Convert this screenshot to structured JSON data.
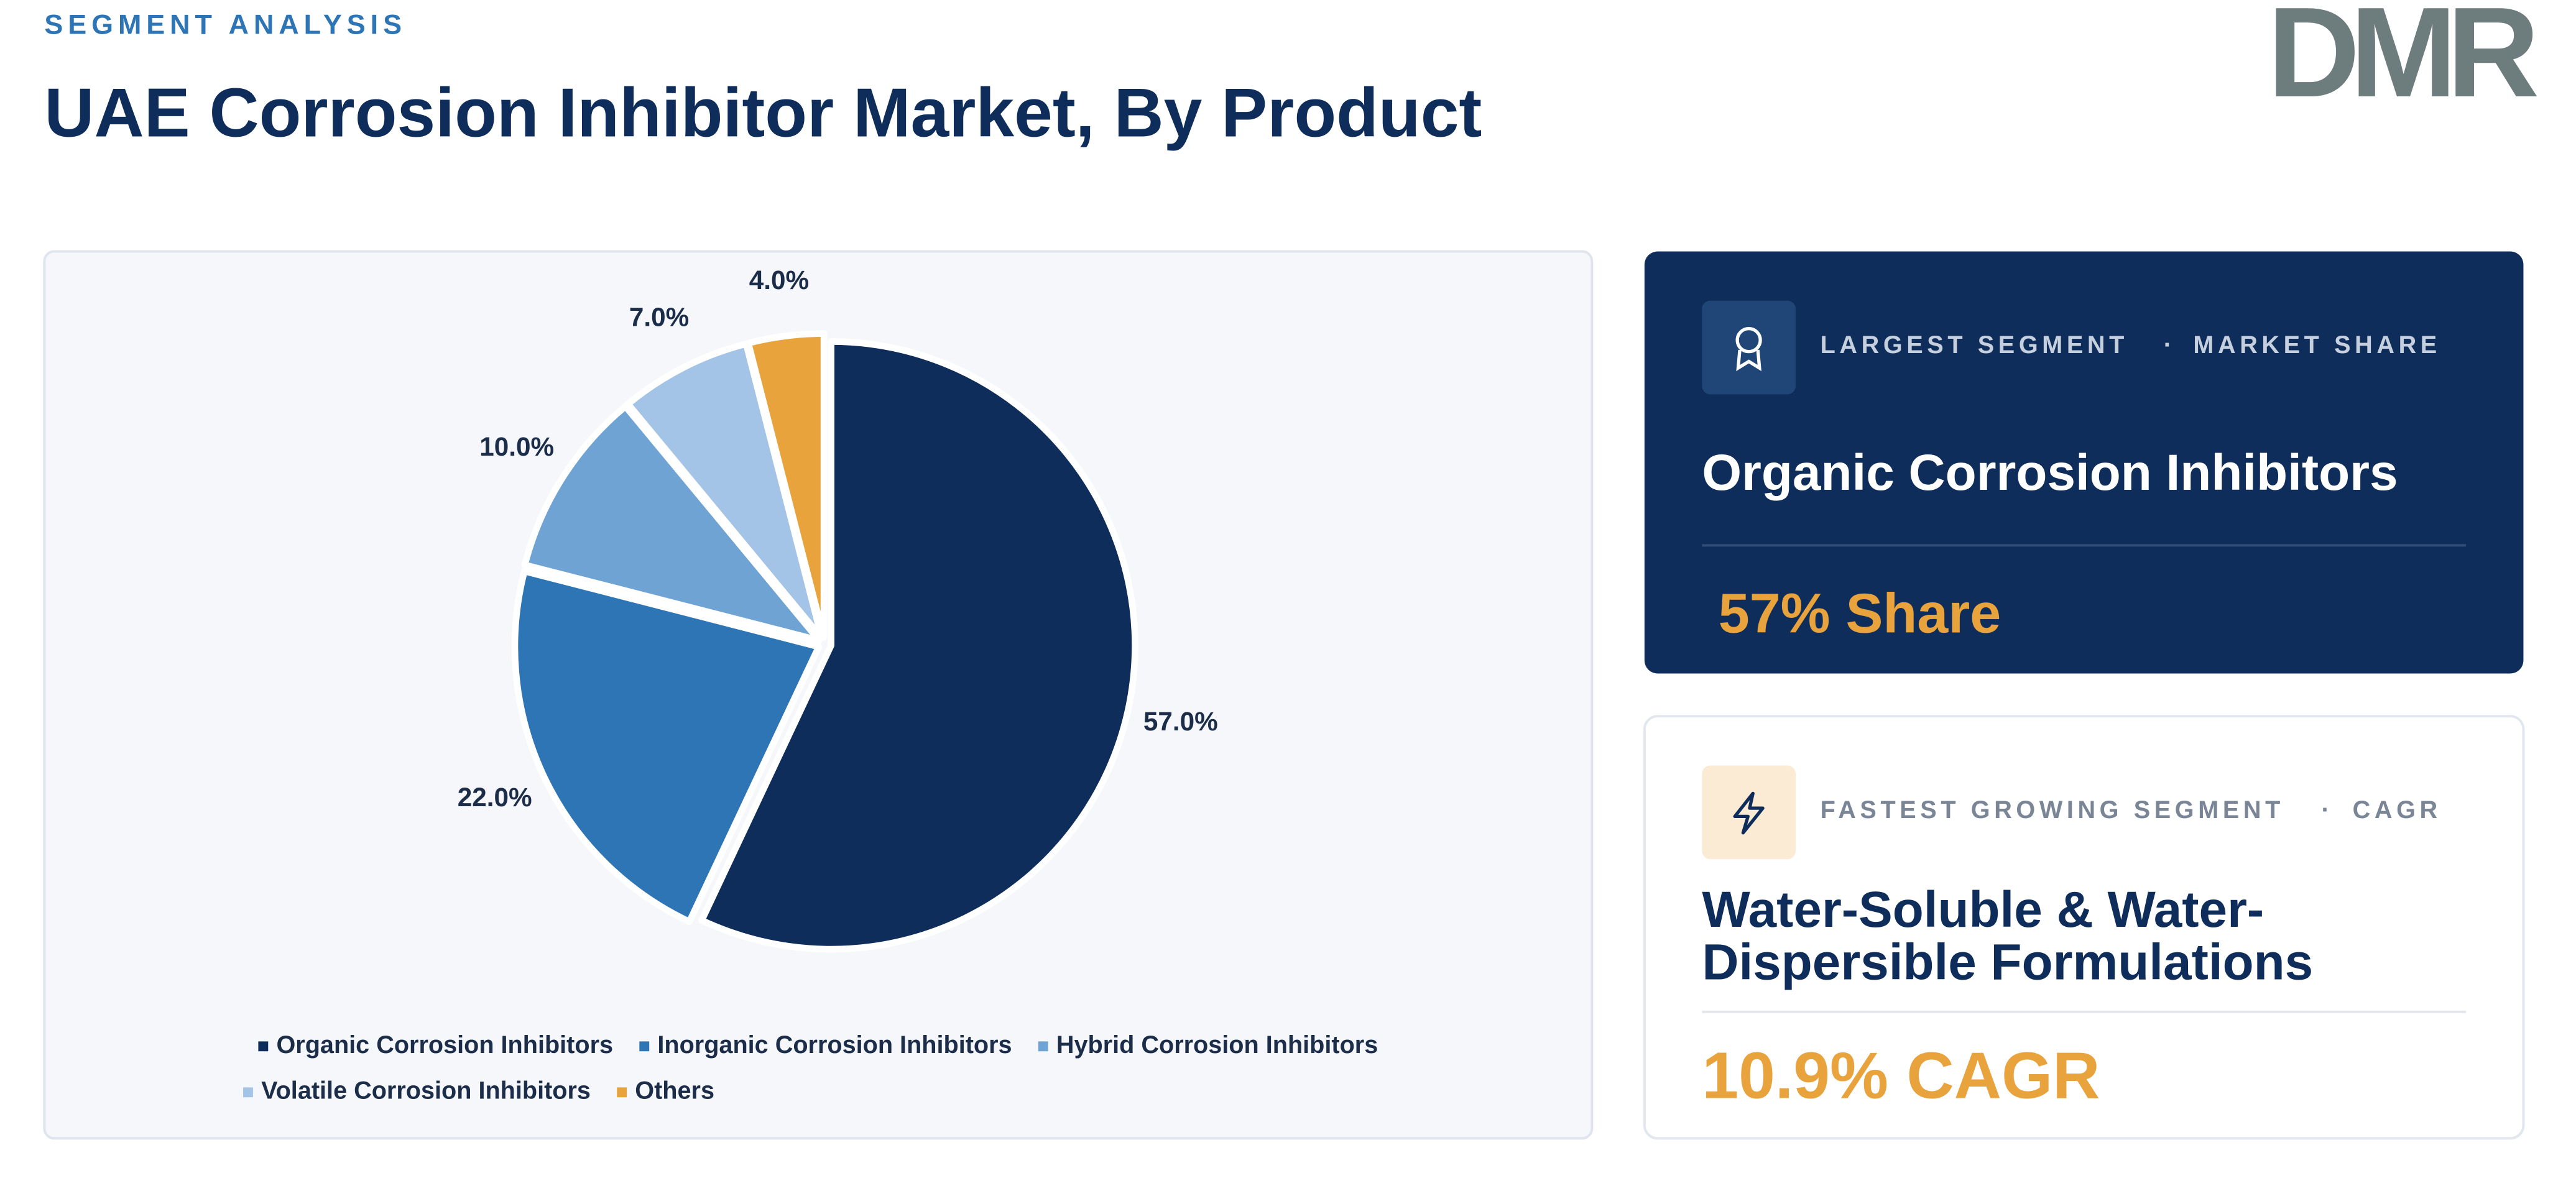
{
  "header": {
    "eyebrow": "SEGMENT ANALYSIS",
    "title": "UAE Corrosion Inhibitor Market, By Product",
    "logo": "DMR"
  },
  "chart_data": {
    "type": "pie",
    "categories": [
      "Organic Corrosion Inhibitors",
      "Inorganic Corrosion Inhibitors",
      "Hybrid Corrosion Inhibitors",
      "Volatile Corrosion Inhibitors",
      "Others"
    ],
    "values": [
      57,
      22,
      10,
      7,
      4
    ],
    "value_labels": [
      "57.0%",
      "22.0%",
      "10.0%",
      "7.0%",
      "4.0%"
    ],
    "colors": [
      "#0f2d5a",
      "#2e75b6",
      "#6fa3d4",
      "#a3c4e6",
      "#e8a33d"
    ],
    "legend": "bottom"
  },
  "cards": [
    {
      "label": "LARGEST SEGMENT",
      "separator": "·",
      "label2": "MARKET SHARE",
      "segment": [
        "Organic Corrosion Inhibitors"
      ],
      "metric": "57% Share"
    },
    {
      "label": "FASTEST GROWING SEGMENT",
      "separator": "·",
      "label2": "CAGR",
      "segment": [
        "Water-Soluble & Water-",
        "Dispersible Formulations"
      ],
      "metric": "10.9% CAGR"
    }
  ]
}
